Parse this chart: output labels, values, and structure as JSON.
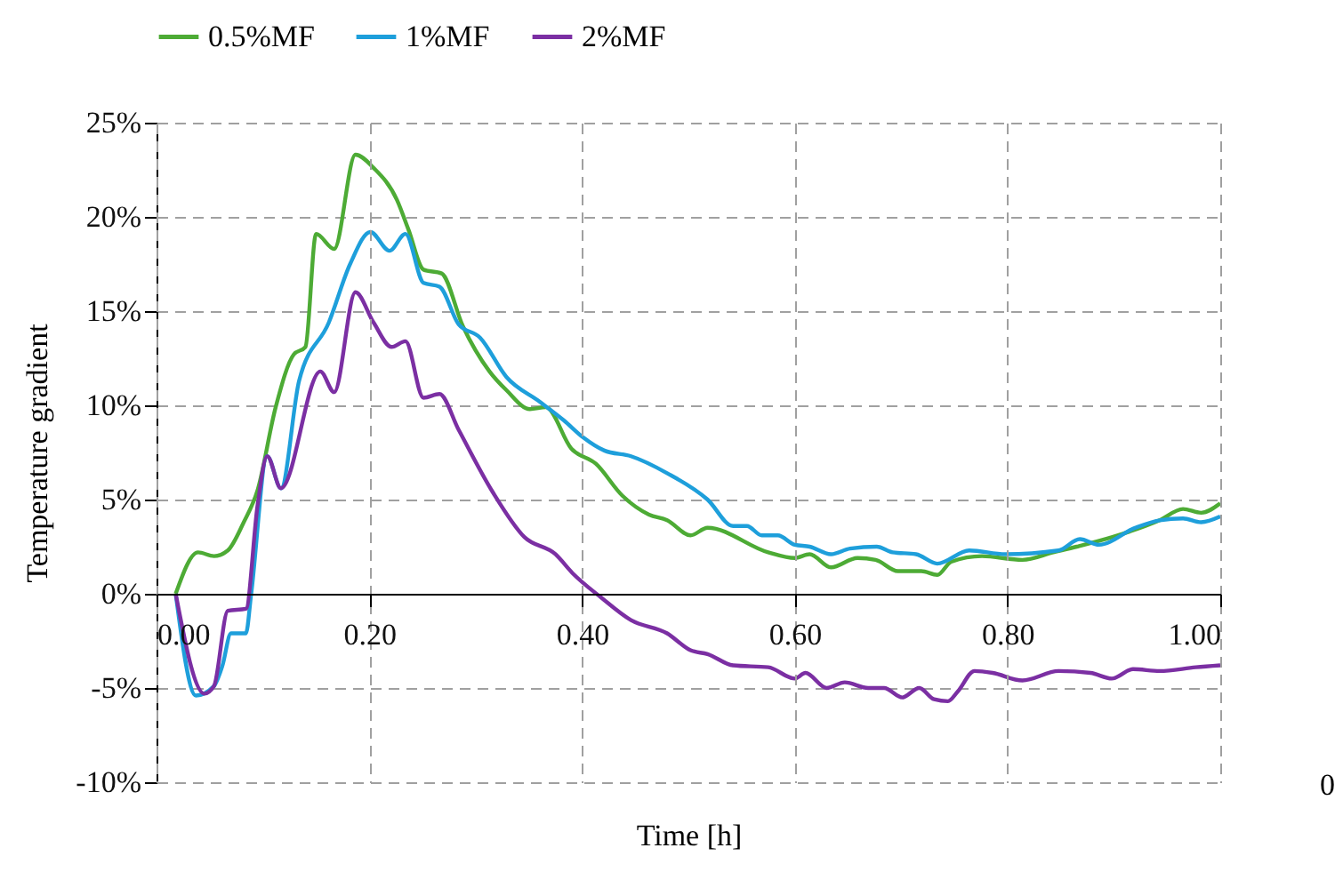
{
  "chart_data": {
    "type": "line",
    "xlabel": "Time [h]",
    "ylabel": "Temperature gradient",
    "annotations": [
      "0"
    ],
    "xlim": [
      0,
      1
    ],
    "ylim": [
      -10,
      25
    ],
    "xticks": [
      {
        "value": 0,
        "label": "0.00"
      },
      {
        "value": 0.2,
        "label": "0.20"
      },
      {
        "value": 0.4,
        "label": "0.40"
      },
      {
        "value": 0.6,
        "label": "0.60"
      },
      {
        "value": 0.8,
        "label": "0.80"
      },
      {
        "value": 1,
        "label": "1.00"
      }
    ],
    "yticks": [
      {
        "value": -10,
        "label": "-10%"
      },
      {
        "value": -5,
        "label": "-5%"
      },
      {
        "value": 0,
        "label": "0%"
      },
      {
        "value": 5,
        "label": "5%"
      },
      {
        "value": 10,
        "label": "10%"
      },
      {
        "value": 15,
        "label": "15%"
      },
      {
        "value": 20,
        "label": "20%"
      },
      {
        "value": 25,
        "label": "25%"
      }
    ],
    "grid": true,
    "legend": "top",
    "marker": "none",
    "line_style": "solid",
    "series": [
      {
        "name": "0.5%MF",
        "color": "#4dab35",
        "x": [
          0.018,
          0.039,
          0.054,
          0.067,
          0.082,
          0.095,
          0.112,
          0.129,
          0.14,
          0.15,
          0.167,
          0.187,
          0.204,
          0.226,
          0.237,
          0.251,
          0.268,
          0.288,
          0.313,
          0.329,
          0.351,
          0.366,
          0.39,
          0.413,
          0.438,
          0.463,
          0.48,
          0.502,
          0.518,
          0.575,
          0.6,
          0.614,
          0.634,
          0.659,
          0.676,
          0.697,
          0.719,
          0.734,
          0.747,
          0.776,
          0.814,
          0.843,
          0.865,
          0.898,
          0.943,
          0.965,
          0.982,
          1.0
        ],
        "values": [
          0,
          2.2,
          2.0,
          2.3,
          3.8,
          5.5,
          9.9,
          12.7,
          13.1,
          19.1,
          18.3,
          23.3,
          22.6,
          20.9,
          19.3,
          17.2,
          17.0,
          14.2,
          11.8,
          10.8,
          9.8,
          9.9,
          7.7,
          6.9,
          5.2,
          4.2,
          3.9,
          3.1,
          3.5,
          2.2,
          1.9,
          2.1,
          1.4,
          1.9,
          1.8,
          1.2,
          1.2,
          1.0,
          1.7,
          2.0,
          1.8,
          2.2,
          2.5,
          3.0,
          3.9,
          4.5,
          4.3,
          4.8
        ]
      },
      {
        "name": "1%MF",
        "color": "#1e9fdb",
        "x": [
          0.018,
          0.037,
          0.054,
          0.062,
          0.07,
          0.084,
          0.089,
          0.104,
          0.117,
          0.134,
          0.162,
          0.182,
          0.201,
          0.219,
          0.234,
          0.251,
          0.266,
          0.284,
          0.304,
          0.329,
          0.36,
          0.383,
          0.401,
          0.421,
          0.446,
          0.48,
          0.518,
          0.542,
          0.555,
          0.569,
          0.584,
          0.6,
          0.614,
          0.634,
          0.652,
          0.677,
          0.692,
          0.714,
          0.734,
          0.764,
          0.798,
          0.848,
          0.868,
          0.886,
          0.92,
          0.943,
          0.965,
          0.982,
          1.0
        ],
        "values": [
          0,
          -5.4,
          -4.9,
          -3.8,
          -2.1,
          -2.1,
          0,
          7.3,
          5.6,
          11.3,
          14.4,
          17.5,
          19.2,
          18.2,
          19.1,
          16.5,
          16.3,
          14.3,
          13.6,
          11.5,
          10.2,
          9.2,
          8.3,
          7.6,
          7.3,
          6.4,
          5.0,
          3.6,
          3.6,
          3.1,
          3.1,
          2.6,
          2.5,
          2.1,
          2.4,
          2.5,
          2.2,
          2.1,
          1.6,
          2.3,
          2.1,
          2.3,
          2.9,
          2.6,
          3.5,
          3.9,
          4.0,
          3.8,
          4.1
        ]
      },
      {
        "name": "2%MF",
        "color": "#7b2fa3",
        "x": [
          0.018,
          0.045,
          0.054,
          0.067,
          0.084,
          0.095,
          0.104,
          0.117,
          0.154,
          0.167,
          0.187,
          0.204,
          0.221,
          0.234,
          0.251,
          0.266,
          0.284,
          0.316,
          0.346,
          0.375,
          0.391,
          0.418,
          0.446,
          0.48,
          0.502,
          0.518,
          0.542,
          0.575,
          0.6,
          0.61,
          0.63,
          0.647,
          0.669,
          0.684,
          0.701,
          0.717,
          0.731,
          0.744,
          0.753,
          0.769,
          0.786,
          0.814,
          0.848,
          0.878,
          0.898,
          0.918,
          0.943,
          0.977,
          1.0
        ],
        "values": [
          0,
          -5.3,
          -4.9,
          -0.9,
          -0.8,
          4.7,
          7.3,
          5.6,
          11.8,
          10.7,
          16.0,
          14.4,
          13.1,
          13.4,
          10.4,
          10.6,
          8.7,
          5.4,
          3.0,
          2.1,
          1.1,
          -0.2,
          -1.4,
          -2.1,
          -3.0,
          -3.2,
          -3.8,
          -3.9,
          -4.5,
          -4.2,
          -5.0,
          -4.7,
          -5.0,
          -5.0,
          -5.5,
          -5.0,
          -5.6,
          -5.7,
          -5.2,
          -4.1,
          -4.2,
          -4.6,
          -4.1,
          -4.2,
          -4.5,
          -4.0,
          -4.1,
          -3.9,
          -3.8
        ]
      }
    ]
  }
}
